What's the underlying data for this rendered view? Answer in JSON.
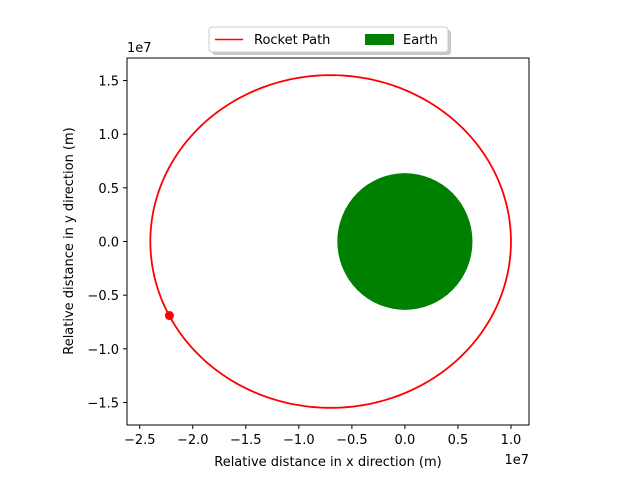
{
  "chart_data": {
    "type": "line",
    "xlabel": "Relative distance in x direction (m)",
    "ylabel": "Relative distance in y direction (m)",
    "x_offset_text": "1e7",
    "y_offset_text": "1e7",
    "xlim": [
      -2.62,
      1.17
    ],
    "ylim": [
      -1.71,
      1.71
    ],
    "x_ticks": [
      -2.5,
      -2.0,
      -1.5,
      -1.0,
      -0.5,
      0.0,
      0.5,
      1.0
    ],
    "x_tick_labels": [
      "−2.5",
      "−2.0",
      "−1.5",
      "−1.0",
      "−0.5",
      "0.0",
      "0.5",
      "1.0"
    ],
    "y_ticks": [
      -1.5,
      -1.0,
      -0.5,
      0.0,
      0.5,
      1.0,
      1.5
    ],
    "y_tick_labels": [
      "−1.5",
      "−1.0",
      "−0.5",
      "0.0",
      "0.5",
      "1.0",
      "1.5"
    ],
    "grid": false,
    "legend_position": "top-center",
    "series": [
      {
        "name": "Rocket Path",
        "kind": "ellipse-orbit",
        "color": "#ff0000",
        "center": [
          -0.7,
          0.0
        ],
        "semi_major": 1.7,
        "semi_minor": 1.55
      },
      {
        "name": "Earth",
        "kind": "filled-circle",
        "color": "#008000",
        "center": [
          0.0,
          0.0
        ],
        "radius": 0.637
      }
    ],
    "rocket_position": {
      "x": -2.22,
      "y": -0.69,
      "color": "#ff0000"
    }
  }
}
